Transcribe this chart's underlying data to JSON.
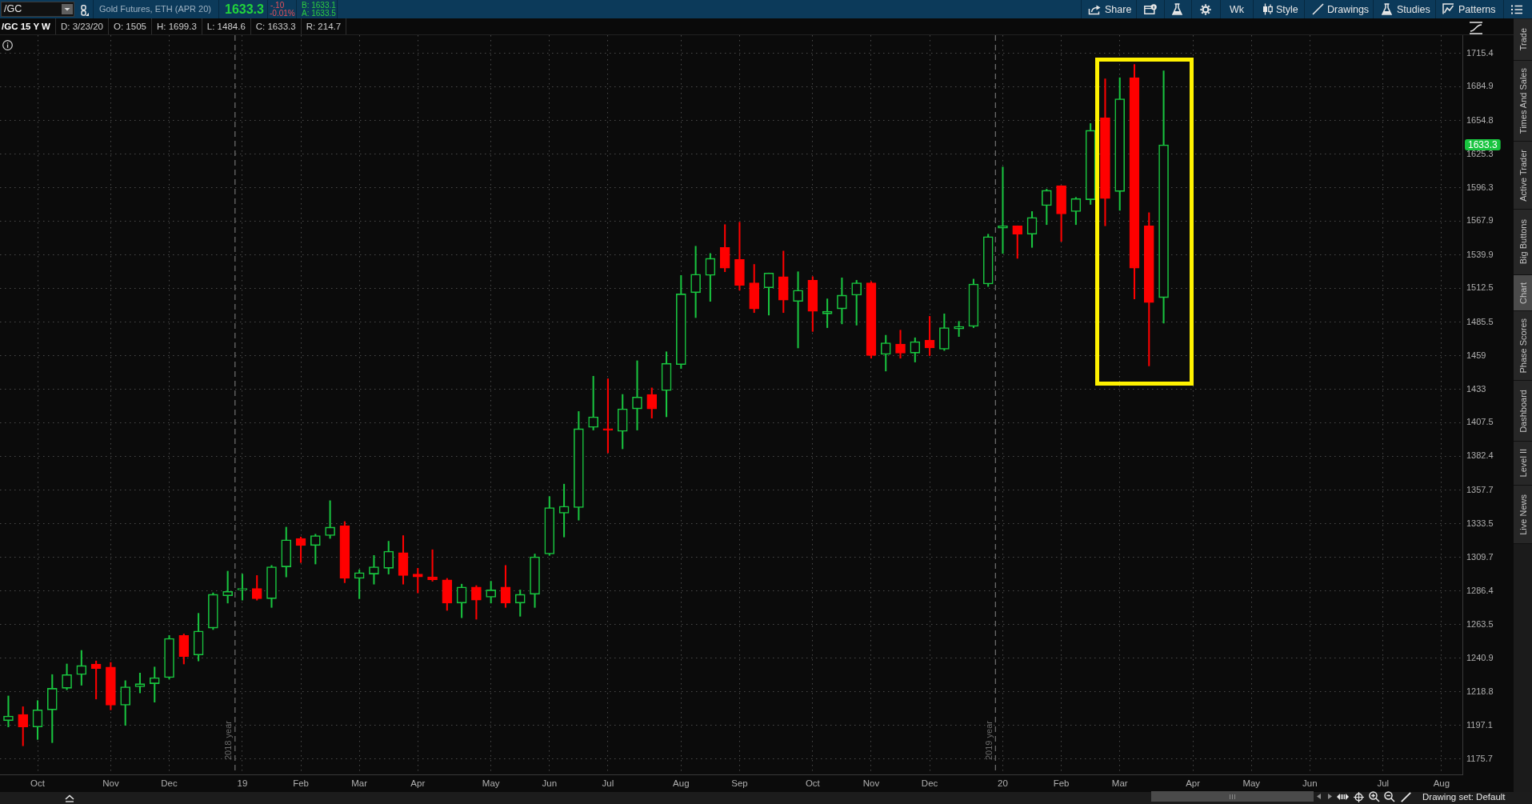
{
  "chart_data": {
    "type": "candlestick",
    "title": "Gold Futures, ETH (APR 20)",
    "subtitle": "/GC 15 Y W",
    "annotations": [
      "/GC",
      "1633.3",
      "-.10",
      "-0.01%",
      "B: 1633.1",
      "A: 1633.5",
      "Share",
      "Wk",
      "Style",
      "Drawings",
      "Studies",
      "Patterns",
      "D: 3/23/20",
      "O: 1505",
      "H: 1699.3",
      "L: 1484.6",
      "C: 1633.3",
      "R: 214.7",
      "Trade",
      "Times And Sales",
      "Active Trader",
      "Big Buttons",
      "Chart",
      "Phase Scores",
      "Dashboard",
      "Level II",
      "Live News",
      "Drawing set: Default",
      "1633.3"
    ],
    "x": [
      "2018-09-17",
      "2018-09-24",
      "2018-10-01",
      "2018-10-08",
      "2018-10-15",
      "2018-10-22",
      "2018-10-29",
      "2018-11-05",
      "2018-11-12",
      "2018-11-19",
      "2018-11-26",
      "2018-12-03",
      "2018-12-10",
      "2018-12-17",
      "2018-12-24",
      "2018-12-31",
      "2019-01-07",
      "2019-01-14",
      "2019-01-21",
      "2019-01-28",
      "2019-02-04",
      "2019-02-11",
      "2019-02-18",
      "2019-02-25",
      "2019-03-04",
      "2019-03-11",
      "2019-03-18",
      "2019-03-25",
      "2019-04-01",
      "2019-04-08",
      "2019-04-15",
      "2019-04-22",
      "2019-04-29",
      "2019-05-06",
      "2019-05-13",
      "2019-05-20",
      "2019-05-27",
      "2019-06-03",
      "2019-06-10",
      "2019-06-17",
      "2019-06-24",
      "2019-07-01",
      "2019-07-08",
      "2019-07-15",
      "2019-07-22",
      "2019-07-29",
      "2019-08-05",
      "2019-08-12",
      "2019-08-19",
      "2019-08-26",
      "2019-09-02",
      "2019-09-09",
      "2019-09-16",
      "2019-09-23",
      "2019-09-30",
      "2019-10-07",
      "2019-10-14",
      "2019-10-21",
      "2019-10-28",
      "2019-11-04",
      "2019-11-11",
      "2019-11-18",
      "2019-11-25",
      "2019-12-02",
      "2019-12-09",
      "2019-12-16",
      "2019-12-23",
      "2019-12-30",
      "2020-01-06",
      "2020-01-13",
      "2020-01-20",
      "2020-01-27",
      "2020-02-03",
      "2020-02-10",
      "2020-02-17",
      "2020-02-24",
      "2020-03-02",
      "2020-03-09",
      "2020-03-16",
      "2020-03-23"
    ],
    "ohlc": [
      [
        1200,
        1216,
        1196,
        1203
      ],
      [
        1204,
        1209,
        1184,
        1196
      ],
      [
        1196,
        1213,
        1188,
        1207
      ],
      [
        1207,
        1230,
        1186,
        1221
      ],
      [
        1221,
        1237,
        1220,
        1230
      ],
      [
        1230,
        1246,
        1223,
        1236
      ],
      [
        1237,
        1239,
        1214,
        1234
      ],
      [
        1235,
        1238,
        1207,
        1210
      ],
      [
        1210,
        1226,
        1197,
        1222
      ],
      [
        1222,
        1231,
        1218,
        1224
      ],
      [
        1224,
        1235,
        1212,
        1228
      ],
      [
        1228,
        1256,
        1227,
        1254
      ],
      [
        1256,
        1257,
        1237,
        1242
      ],
      [
        1243,
        1271,
        1239,
        1259
      ],
      [
        1261,
        1285,
        1260,
        1284
      ],
      [
        1283,
        1300,
        1278,
        1286
      ],
      [
        1287,
        1298,
        1280,
        1288
      ],
      [
        1288,
        1297,
        1280,
        1281
      ],
      [
        1281,
        1304,
        1275,
        1303
      ],
      [
        1303,
        1331,
        1296,
        1322
      ],
      [
        1323,
        1324,
        1306,
        1318
      ],
      [
        1318,
        1326,
        1305,
        1325
      ],
      [
        1325,
        1350,
        1323,
        1331
      ],
      [
        1332,
        1335,
        1292,
        1295
      ],
      [
        1295,
        1301,
        1281,
        1299
      ],
      [
        1298,
        1311,
        1291,
        1303
      ],
      [
        1302,
        1321,
        1298,
        1314
      ],
      [
        1313,
        1325,
        1291,
        1297
      ],
      [
        1298,
        1302,
        1285,
        1296
      ],
      [
        1296,
        1315,
        1293,
        1294
      ],
      [
        1294,
        1295,
        1273,
        1278
      ],
      [
        1278,
        1291,
        1268,
        1289
      ],
      [
        1289,
        1290,
        1267,
        1280
      ],
      [
        1282,
        1293,
        1278,
        1287
      ],
      [
        1289,
        1304,
        1275,
        1278
      ],
      [
        1278,
        1287,
        1269,
        1284
      ],
      [
        1284,
        1312,
        1275,
        1310
      ],
      [
        1312,
        1353,
        1311,
        1345
      ],
      [
        1341,
        1362,
        1324,
        1346
      ],
      [
        1345,
        1416,
        1336,
        1403
      ],
      [
        1404,
        1443,
        1402,
        1412
      ],
      [
        1403,
        1441,
        1385,
        1402
      ],
      [
        1401,
        1429,
        1388,
        1418
      ],
      [
        1418,
        1455,
        1402,
        1427
      ],
      [
        1429,
        1434,
        1411,
        1418
      ],
      [
        1432,
        1462,
        1412,
        1453
      ],
      [
        1452,
        1523,
        1449,
        1508
      ],
      [
        1509,
        1547,
        1489,
        1524
      ],
      [
        1523,
        1541,
        1502,
        1537
      ],
      [
        1546,
        1565,
        1526,
        1529
      ],
      [
        1536,
        1567,
        1511,
        1515
      ],
      [
        1517,
        1532,
        1493,
        1496
      ],
      [
        1513,
        1525,
        1491,
        1525
      ],
      [
        1522,
        1543,
        1493,
        1503
      ],
      [
        1502,
        1526,
        1465,
        1511
      ],
      [
        1519,
        1522,
        1478,
        1494
      ],
      [
        1492,
        1504,
        1481,
        1494
      ],
      [
        1496,
        1521,
        1484,
        1507
      ],
      [
        1507,
        1519,
        1483,
        1517
      ],
      [
        1517,
        1518,
        1457,
        1459
      ],
      [
        1460,
        1475,
        1447,
        1469
      ],
      [
        1468,
        1479,
        1457,
        1461
      ],
      [
        1461,
        1473,
        1454,
        1470
      ],
      [
        1471,
        1490,
        1459,
        1465
      ],
      [
        1464,
        1492,
        1463,
        1481
      ],
      [
        1480,
        1486,
        1474,
        1482
      ],
      [
        1482,
        1520,
        1481,
        1516
      ],
      [
        1516,
        1557,
        1514,
        1555
      ],
      [
        1562,
        1614,
        1541,
        1564
      ],
      [
        1564,
        1564,
        1537,
        1557
      ],
      [
        1557,
        1576,
        1546,
        1571
      ],
      [
        1581,
        1595,
        1565,
        1594
      ],
      [
        1598,
        1598,
        1551,
        1574
      ],
      [
        1576,
        1588,
        1565,
        1587
      ],
      [
        1586,
        1652,
        1582,
        1646
      ],
      [
        1657,
        1692,
        1564,
        1587
      ],
      [
        1593,
        1693,
        1577,
        1674
      ],
      [
        1693,
        1705,
        1504,
        1529
      ],
      [
        1564,
        1575,
        1451,
        1501
      ],
      [
        1505,
        1699.3,
        1484.6,
        1633.3
      ]
    ],
    "colors": [
      "#19c43f",
      "#ff0000",
      "#19c43f",
      "#19c43f",
      "#19c43f",
      "#19c43f",
      "#ff0000",
      "#ff0000",
      "#19c43f",
      "#19c43f",
      "#19c43f",
      "#19c43f",
      "#ff0000",
      "#19c43f",
      "#19c43f",
      "#19c43f",
      "#19c43f",
      "#ff0000",
      "#19c43f",
      "#19c43f",
      "#ff0000",
      "#19c43f",
      "#19c43f",
      "#ff0000",
      "#19c43f",
      "#19c43f",
      "#19c43f",
      "#ff0000",
      "#ff0000",
      "#ff0000",
      "#ff0000",
      "#19c43f",
      "#ff0000",
      "#19c43f",
      "#ff0000",
      "#19c43f",
      "#19c43f",
      "#19c43f",
      "#19c43f",
      "#19c43f",
      "#19c43f",
      "#ff0000",
      "#19c43f",
      "#19c43f",
      "#ff0000",
      "#19c43f",
      "#19c43f",
      "#19c43f",
      "#19c43f",
      "#ff0000",
      "#ff0000",
      "#ff0000",
      "#19c43f",
      "#ff0000",
      "#19c43f",
      "#ff0000",
      "#19c43f",
      "#19c43f",
      "#19c43f",
      "#ff0000",
      "#19c43f",
      "#ff0000",
      "#19c43f",
      "#ff0000",
      "#19c43f",
      "#19c43f",
      "#19c43f",
      "#19c43f",
      "#19c43f",
      "#ff0000",
      "#19c43f",
      "#19c43f",
      "#ff0000",
      "#19c43f",
      "#19c43f",
      "#ff0000",
      "#19c43f",
      "#ff0000",
      "#ff0000",
      "#19c43f"
    ],
    "xlim": [
      "2018-09-13",
      "2020-08-13"
    ],
    "xticks": [
      {
        "value": "2018-10-01",
        "label": "Oct"
      },
      {
        "value": "2018-11-05",
        "label": "Nov"
      },
      {
        "value": "2018-12-03",
        "label": "Dec"
      },
      {
        "value": "2019-01-07",
        "label": "19"
      },
      {
        "value": "2019-02-04",
        "label": "Feb"
      },
      {
        "value": "2019-03-04",
        "label": "Mar"
      },
      {
        "value": "2019-04-01",
        "label": "Apr"
      },
      {
        "value": "2019-05-06",
        "label": "May"
      },
      {
        "value": "2019-06-03",
        "label": "Jun"
      },
      {
        "value": "2019-07-01",
        "label": "Jul"
      },
      {
        "value": "2019-08-05",
        "label": "Aug"
      },
      {
        "value": "2019-09-02",
        "label": "Sep"
      },
      {
        "value": "2019-10-07",
        "label": "Oct"
      },
      {
        "value": "2019-11-04",
        "label": "Nov"
      },
      {
        "value": "2019-12-02",
        "label": "Dec"
      },
      {
        "value": "2020-01-06",
        "label": "20"
      },
      {
        "value": "2020-02-03",
        "label": "Feb"
      },
      {
        "value": "2020-03-02",
        "label": "Mar"
      },
      {
        "value": "2020-04-06",
        "label": "Apr"
      },
      {
        "value": "2020-05-04",
        "label": "May"
      },
      {
        "value": "2020-06-01",
        "label": "Jun"
      },
      {
        "value": "2020-07-06",
        "label": "Jul"
      },
      {
        "value": "2020-08-03",
        "label": "Aug"
      }
    ],
    "ylim": [
      1166,
      1732
    ],
    "yticks": [
      1175.7,
      1197.1,
      1218.8,
      1240.9,
      1263.5,
      1286.4,
      1309.7,
      1333.5,
      1357.7,
      1382.4,
      1407.5,
      1433,
      1459,
      1485.5,
      1512.5,
      1539.9,
      1567.9,
      1596.3,
      1625.3,
      1654.8,
      1684.9,
      1715.4
    ],
    "log": "y",
    "grid": true,
    "ref_lines": [
      {
        "axis": "x",
        "value": "2019-01-03T12:00",
        "label": "2018 year",
        "color": "#6a6a6a",
        "line_style": "dashed"
      },
      {
        "axis": "x",
        "value": "2020-01-02T12:00",
        "label": "2019 year",
        "color": "#6a6a6a",
        "line_style": "dashed"
      }
    ]
  }
}
